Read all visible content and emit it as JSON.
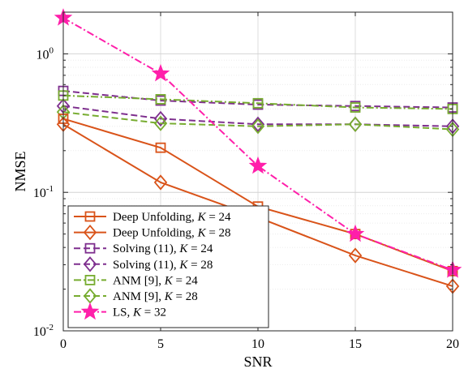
{
  "chart_data": {
    "type": "line",
    "xlabel": "SNR",
    "ylabel": "NMSE",
    "x": [
      0,
      5,
      10,
      15,
      20
    ],
    "xlim": [
      0,
      20
    ],
    "ylim": [
      0.01,
      2
    ],
    "yscale": "log",
    "grid": true,
    "legend_position": "bottom-left",
    "x_ticks": [
      "0",
      "5",
      "10",
      "15",
      "20"
    ],
    "y_ticks": [
      {
        "value": 0.01,
        "base": "10",
        "exp": "-2"
      },
      {
        "value": 0.1,
        "base": "10",
        "exp": "-1"
      },
      {
        "value": 1,
        "base": "10",
        "exp": "0"
      }
    ],
    "series": [
      {
        "name": "Deep Unfolding, K = 24",
        "name_prefix": "Deep Unfolding, ",
        "k_value": "24",
        "color": "#D95319",
        "marker": "square",
        "dash": "solid",
        "values": [
          0.34,
          0.21,
          0.079,
          0.05,
          0.027
        ]
      },
      {
        "name": "Deep Unfolding, K = 28",
        "name_prefix": "Deep Unfolding, ",
        "k_value": "28",
        "color": "#D95319",
        "marker": "diamond",
        "dash": "solid",
        "values": [
          0.31,
          0.118,
          0.066,
          0.035,
          0.021
        ]
      },
      {
        "name": "Solving (11), K = 24",
        "name_prefix": "Solving (11), ",
        "k_value": "24",
        "color": "#7E2F8E",
        "marker": "square",
        "dash": "dashed",
        "values": [
          0.54,
          0.46,
          0.43,
          0.42,
          0.41
        ]
      },
      {
        "name": "Solving (11), K = 28",
        "name_prefix": "Solving (11), ",
        "k_value": "28",
        "color": "#7E2F8E",
        "marker": "diamond",
        "dash": "dashed",
        "values": [
          0.42,
          0.34,
          0.31,
          0.31,
          0.3
        ]
      },
      {
        "name": "ANM [9], K = 24",
        "name_prefix": "ANM [9], ",
        "k_value": "24",
        "color": "#77AC30",
        "marker": "square",
        "dash": "dashdot",
        "values": [
          0.5,
          0.47,
          0.44,
          0.41,
          0.4
        ]
      },
      {
        "name": "ANM [9], K = 28",
        "name_prefix": "ANM [9], ",
        "k_value": "28",
        "color": "#77AC30",
        "marker": "diamond",
        "dash": "dashed",
        "values": [
          0.38,
          0.315,
          0.3,
          0.31,
          0.285
        ]
      },
      {
        "name": "LS, K = 32",
        "name_prefix": "LS, ",
        "k_value": "32",
        "color": "#FF1FAA",
        "marker": "star",
        "dash": "dashdot",
        "values": [
          1.82,
          0.72,
          0.155,
          0.05,
          0.0275
        ]
      }
    ]
  }
}
